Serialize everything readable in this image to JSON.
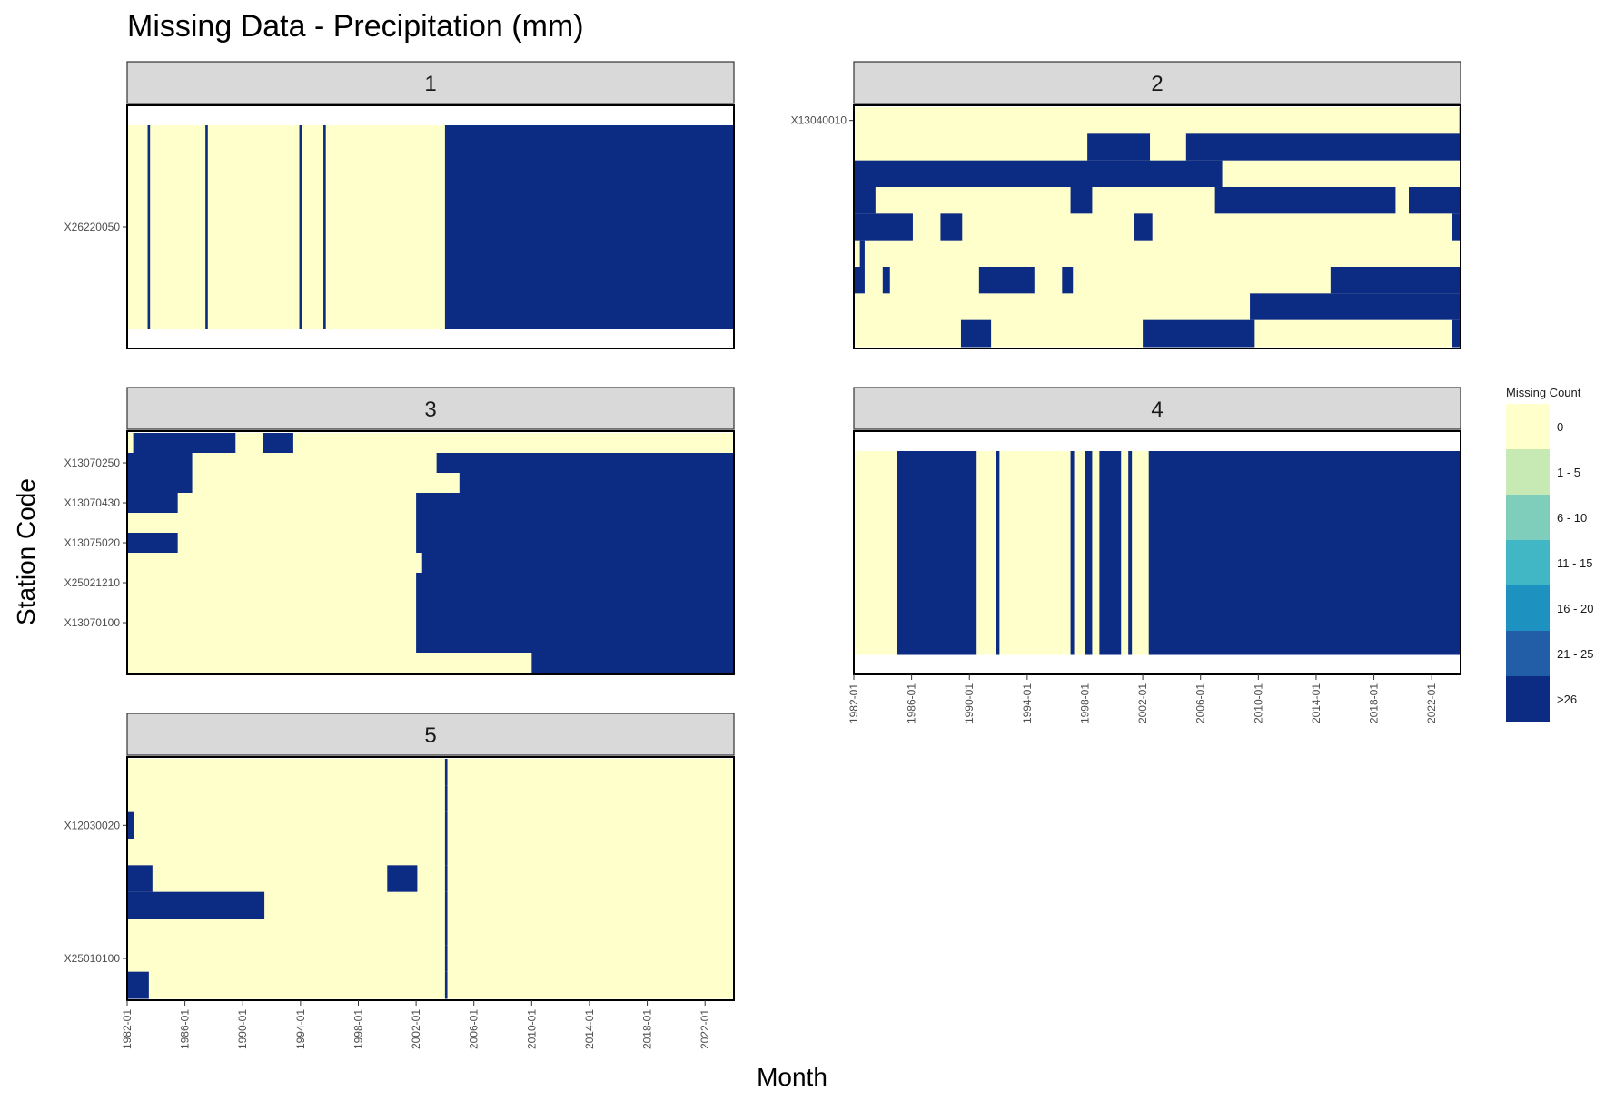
{
  "chart_data": {
    "type": "heatmap",
    "title": "Missing Data - Precipitation (mm)",
    "xlabel": "Month",
    "ylabel": "Station Code",
    "x_range": [
      "1982-01",
      "2023-12"
    ],
    "x_ticks": [
      "1982-01",
      "1986-01",
      "1990-01",
      "1994-01",
      "1998-01",
      "2002-01",
      "2006-01",
      "2010-01",
      "2014-01",
      "2018-01",
      "2022-01"
    ],
    "legend": {
      "title": "Missing Count",
      "placement": "right",
      "categories": [
        "0",
        "1 - 5",
        "6 - 10",
        "11 - 15",
        "16 - 20",
        "21 - 25",
        ">26"
      ],
      "colors": [
        "#ffffcc",
        "#c7e9b4",
        "#7fcdbb",
        "#41b6c4",
        "#1d91c0",
        "#225ea8",
        "#0c2c84"
      ]
    },
    "facets": [
      {
        "label": "1",
        "y_labels": [
          "X26220050"
        ],
        "rows": [
          {
            "station": "X26220050",
            "missing_runs": [
              [
                "1983-06",
                "1983-07"
              ],
              [
                "1987-06",
                "1987-07"
              ],
              [
                "1993-12",
                "1994-01"
              ],
              [
                "1995-08",
                "1995-09"
              ],
              [
                "2004-01",
                "2023-12"
              ]
            ]
          }
        ]
      },
      {
        "label": "2",
        "y_labels": [
          "X13040010"
        ],
        "rows": [
          {
            "station": "X13040010",
            "missing_runs": [
              [
                "2023-12",
                "2023-12"
              ]
            ]
          },
          {
            "station": "",
            "missing_runs": [
              [
                "1998-03",
                "2002-06"
              ],
              [
                "2005-01",
                "2023-12"
              ]
            ]
          },
          {
            "station": "",
            "missing_runs": [
              [
                "1982-01",
                "2007-06"
              ]
            ]
          },
          {
            "station": "",
            "missing_runs": [
              [
                "1982-01",
                "1983-06"
              ],
              [
                "1997-01",
                "1998-06"
              ],
              [
                "2007-01",
                "2019-06"
              ],
              [
                "2020-06",
                "2023-12"
              ]
            ]
          },
          {
            "station": "",
            "missing_runs": [
              [
                "1982-01",
                "1986-01"
              ],
              [
                "1988-01",
                "1989-06"
              ],
              [
                "2001-06",
                "2002-08"
              ],
              [
                "2023-06",
                "2023-12"
              ]
            ]
          },
          {
            "station": "",
            "missing_runs": [
              [
                "1982-06",
                "1982-09"
              ]
            ]
          },
          {
            "station": "",
            "missing_runs": [
              [
                "1982-01",
                "1982-09"
              ],
              [
                "1984-01",
                "1984-06"
              ],
              [
                "1990-09",
                "1994-06"
              ],
              [
                "1996-06",
                "1997-02"
              ],
              [
                "2015-01",
                "2023-12"
              ]
            ]
          },
          {
            "station": "",
            "missing_runs": [
              [
                "2009-06",
                "2023-12"
              ]
            ]
          },
          {
            "station": "",
            "missing_runs": [
              [
                "1989-06",
                "1991-06"
              ],
              [
                "2002-01",
                "2009-09"
              ],
              [
                "2023-06",
                "2023-12"
              ]
            ]
          }
        ]
      },
      {
        "label": "3",
        "y_labels": [
          "X13070250",
          "X13070430",
          "X13075020",
          "X25021210",
          "X13070100"
        ],
        "rows": [
          {
            "station": "",
            "missing_runs": [
              [
                "1982-06",
                "1989-06"
              ],
              [
                "1991-06",
                "1993-06"
              ]
            ]
          },
          {
            "station": "X13070250",
            "missing_runs": [
              [
                "1982-01",
                "1986-06"
              ],
              [
                "2003-06",
                "2023-12"
              ]
            ]
          },
          {
            "station": "",
            "missing_runs": [
              [
                "1982-01",
                "1986-06"
              ],
              [
                "2005-01",
                "2023-12"
              ]
            ]
          },
          {
            "station": "X13070430",
            "missing_runs": [
              [
                "1982-01",
                "1985-06"
              ],
              [
                "2002-01",
                "2023-12"
              ]
            ]
          },
          {
            "station": "",
            "missing_runs": [
              [
                "2002-01",
                "2023-12"
              ]
            ]
          },
          {
            "station": "X13075020",
            "missing_runs": [
              [
                "1982-01",
                "1985-06"
              ],
              [
                "2002-01",
                "2023-12"
              ]
            ]
          },
          {
            "station": "",
            "missing_runs": [
              [
                "2002-06",
                "2023-12"
              ]
            ]
          },
          {
            "station": "X25021210",
            "missing_runs": [
              [
                "2002-01",
                "2023-12"
              ]
            ]
          },
          {
            "station": "",
            "missing_runs": [
              [
                "2002-01",
                "2023-12"
              ]
            ]
          },
          {
            "station": "X13070100",
            "missing_runs": [
              [
                "2002-01",
                "2023-12"
              ]
            ]
          },
          {
            "station": "",
            "missing_runs": [
              [
                "2002-01",
                "2023-12"
              ]
            ]
          },
          {
            "station": "",
            "missing_runs": [
              [
                "2010-01",
                "2023-12"
              ]
            ]
          }
        ]
      },
      {
        "label": "4",
        "y_labels": [],
        "rows": [
          {
            "station": "",
            "missing_runs": [
              [
                "1985-01",
                "1990-06"
              ],
              [
                "1991-11",
                "1992-01"
              ],
              [
                "1997-01",
                "1997-03"
              ],
              [
                "1998-01",
                "1998-06"
              ],
              [
                "1999-01",
                "2000-06"
              ],
              [
                "2001-01",
                "2001-03"
              ],
              [
                "2002-06",
                "2023-12"
              ]
            ]
          }
        ]
      },
      {
        "label": "5",
        "y_labels": [
          "X12030020",
          "X25010100"
        ],
        "rows": [
          {
            "station": "",
            "missing_runs": [
              [
                "2004-01",
                "2004-02"
              ]
            ]
          },
          {
            "station": "",
            "missing_runs": [
              [
                "2004-01",
                "2004-02"
              ]
            ]
          },
          {
            "station": "X12030020",
            "missing_runs": [
              [
                "1982-01",
                "1982-06"
              ],
              [
                "2004-01",
                "2004-02"
              ]
            ]
          },
          {
            "station": "",
            "missing_runs": [
              [
                "2004-01",
                "2004-02"
              ]
            ]
          },
          {
            "station": "",
            "missing_runs": [
              [
                "1982-01",
                "1983-09"
              ],
              [
                "2000-01",
                "2002-01"
              ],
              [
                "2004-01",
                "2004-02"
              ]
            ]
          },
          {
            "station": "",
            "missing_runs": [
              [
                "1982-01",
                "1991-06"
              ],
              [
                "2004-01",
                "2004-02"
              ]
            ]
          },
          {
            "station": "",
            "missing_runs": [
              [
                "2004-01",
                "2004-02"
              ]
            ]
          },
          {
            "station": "X25010100",
            "missing_runs": [
              [
                "2004-01",
                "2004-02"
              ]
            ]
          },
          {
            "station": "",
            "missing_runs": [
              [
                "1982-01",
                "1983-06"
              ],
              [
                "2004-01",
                "2004-02"
              ]
            ]
          }
        ]
      }
    ]
  }
}
